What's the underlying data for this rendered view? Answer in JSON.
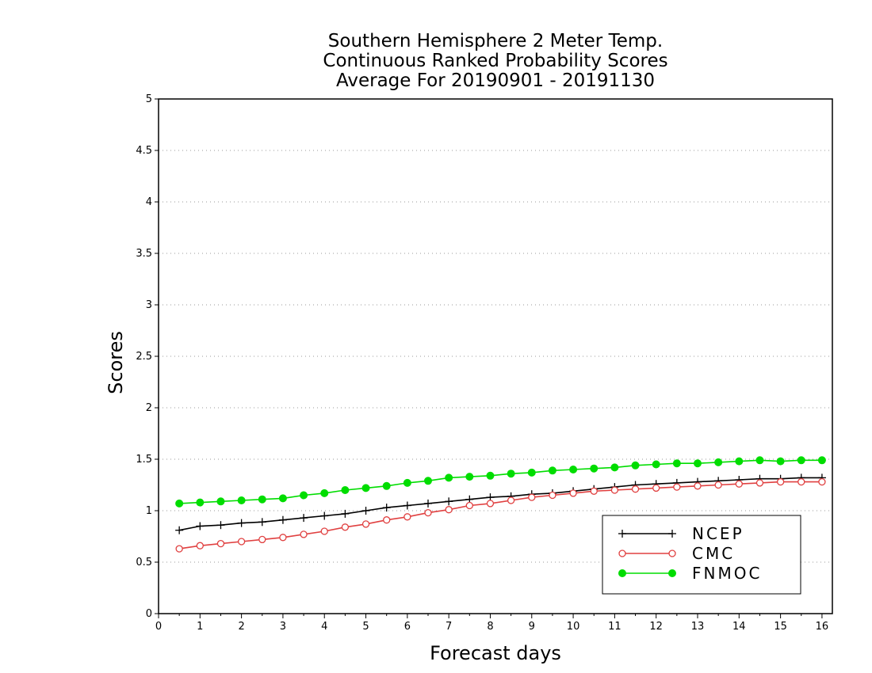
{
  "chart_data": {
    "type": "line",
    "title": [
      "Southern Hemisphere 2 Meter Temp.",
      "Continuous Ranked Probability Scores",
      "Average For 20190901 - 20191130"
    ],
    "xlabel": "Forecast days",
    "ylabel": "Scores",
    "xlim": [
      0,
      16.25
    ],
    "ylim": [
      0,
      5
    ],
    "x_ticks": [
      0,
      1,
      2,
      3,
      4,
      5,
      6,
      7,
      8,
      9,
      10,
      11,
      12,
      13,
      14,
      15,
      16
    ],
    "y_ticks": [
      0,
      0.5,
      1,
      1.5,
      2,
      2.5,
      3,
      3.5,
      4,
      4.5,
      5
    ],
    "y_tick_labels": [
      "0",
      "0.5",
      "1",
      "1.5",
      "2",
      "2.5",
      "3",
      "3.5",
      "4",
      "4.5",
      "5"
    ],
    "grid": "horizontal dotted",
    "legend_position": "bottom-right",
    "x": [
      0.5,
      1,
      1.5,
      2,
      2.5,
      3,
      3.5,
      4,
      4.5,
      5,
      5.5,
      6,
      6.5,
      7,
      7.5,
      8,
      8.5,
      9,
      9.5,
      10,
      10.5,
      11,
      11.5,
      12,
      12.5,
      13,
      13.5,
      14,
      14.5,
      15,
      15.5,
      16
    ],
    "series": [
      {
        "name": "NCEP",
        "color": "#000000",
        "marker": "plus",
        "values": [
          0.81,
          0.85,
          0.86,
          0.88,
          0.89,
          0.91,
          0.93,
          0.95,
          0.97,
          1.0,
          1.03,
          1.05,
          1.07,
          1.09,
          1.11,
          1.13,
          1.14,
          1.16,
          1.17,
          1.19,
          1.21,
          1.23,
          1.25,
          1.26,
          1.27,
          1.28,
          1.29,
          1.3,
          1.31,
          1.31,
          1.32,
          1.32
        ]
      },
      {
        "name": "CMC",
        "color": "#e04040",
        "marker": "open-circle",
        "values": [
          0.63,
          0.66,
          0.68,
          0.7,
          0.72,
          0.74,
          0.77,
          0.8,
          0.84,
          0.87,
          0.91,
          0.94,
          0.98,
          1.01,
          1.05,
          1.07,
          1.1,
          1.13,
          1.15,
          1.17,
          1.19,
          1.2,
          1.21,
          1.22,
          1.23,
          1.24,
          1.25,
          1.26,
          1.27,
          1.28,
          1.28,
          1.28
        ]
      },
      {
        "name": "FNMOC",
        "color": "#00dd00",
        "marker": "filled-circle",
        "values": [
          1.07,
          1.08,
          1.09,
          1.1,
          1.11,
          1.12,
          1.15,
          1.17,
          1.2,
          1.22,
          1.24,
          1.27,
          1.29,
          1.32,
          1.33,
          1.34,
          1.36,
          1.37,
          1.39,
          1.4,
          1.41,
          1.42,
          1.44,
          1.45,
          1.46,
          1.46,
          1.47,
          1.48,
          1.49,
          1.48,
          1.49,
          1.49
        ]
      }
    ]
  }
}
